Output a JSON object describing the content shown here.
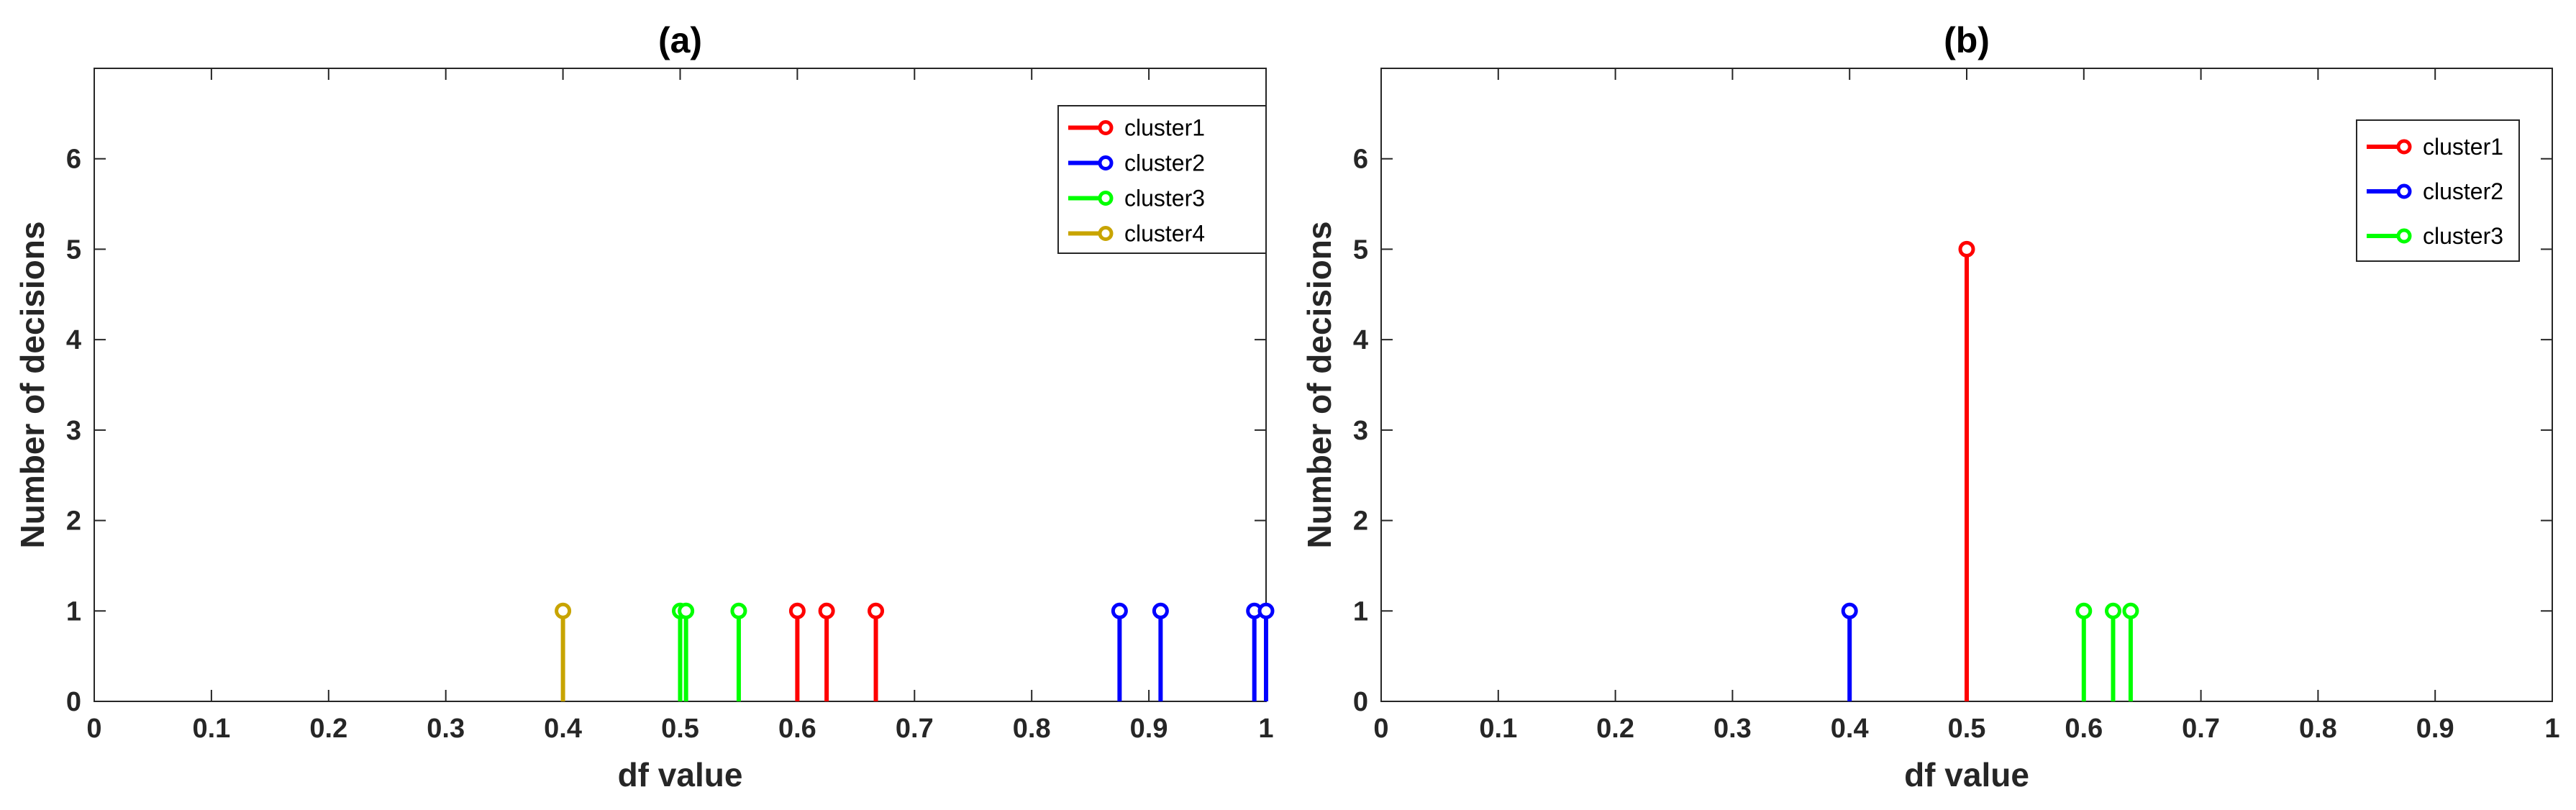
{
  "chart_data": [
    {
      "type": "stem",
      "title": "(a)",
      "xlabel": "df value",
      "ylabel": "Number of decisions",
      "xlim": [
        0,
        1
      ],
      "ylim": [
        0,
        7
      ],
      "xticks": [
        0,
        0.1,
        0.2,
        0.3,
        0.4,
        0.5,
        0.6,
        0.7,
        0.8,
        0.9,
        1
      ],
      "xtick_labels": [
        "0",
        "0.1",
        "0.2",
        "0.3",
        "0.4",
        "0.5",
        "0.6",
        "0.7",
        "0.8",
        "0.9",
        "1"
      ],
      "yticks": [
        0,
        1,
        2,
        3,
        4,
        5,
        6
      ],
      "ytick_labels": [
        "0",
        "1",
        "2",
        "3",
        "4",
        "5",
        "6"
      ],
      "grid": false,
      "legend_position": "top-right",
      "series": [
        {
          "name": "cluster1",
          "color": "#ff0000",
          "x": [
            0.6,
            0.625,
            0.667
          ],
          "y": [
            1,
            1,
            1
          ]
        },
        {
          "name": "cluster2",
          "color": "#0000ff",
          "x": [
            0.875,
            0.91,
            0.99,
            1.0
          ],
          "y": [
            1,
            1,
            1,
            1
          ]
        },
        {
          "name": "cluster3",
          "color": "#00ff00",
          "x": [
            0.5,
            0.505,
            0.55
          ],
          "y": [
            1,
            1,
            1
          ]
        },
        {
          "name": "cluster4",
          "color": "#c8a400",
          "x": [
            0.4
          ],
          "y": [
            1
          ]
        }
      ]
    },
    {
      "type": "stem",
      "title": "(b)",
      "xlabel": "df value",
      "ylabel": "Number of decisions",
      "xlim": [
        0,
        1
      ],
      "ylim": [
        0,
        7
      ],
      "xticks": [
        0,
        0.1,
        0.2,
        0.3,
        0.4,
        0.5,
        0.6,
        0.7,
        0.8,
        0.9,
        1
      ],
      "xtick_labels": [
        "0",
        "0.1",
        "0.2",
        "0.3",
        "0.4",
        "0.5",
        "0.6",
        "0.7",
        "0.8",
        "0.9",
        "1"
      ],
      "yticks": [
        0,
        1,
        2,
        3,
        4,
        5,
        6
      ],
      "ytick_labels": [
        "0",
        "1",
        "2",
        "3",
        "4",
        "5",
        "6"
      ],
      "grid": false,
      "legend_position": "top-right",
      "series": [
        {
          "name": "cluster1",
          "color": "#ff0000",
          "x": [
            0.5
          ],
          "y": [
            5
          ]
        },
        {
          "name": "cluster2",
          "color": "#0000ff",
          "x": [
            0.4
          ],
          "y": [
            1
          ]
        },
        {
          "name": "cluster3",
          "color": "#00ff00",
          "x": [
            0.6,
            0.625,
            0.64
          ],
          "y": [
            1,
            1,
            1
          ]
        }
      ]
    }
  ]
}
